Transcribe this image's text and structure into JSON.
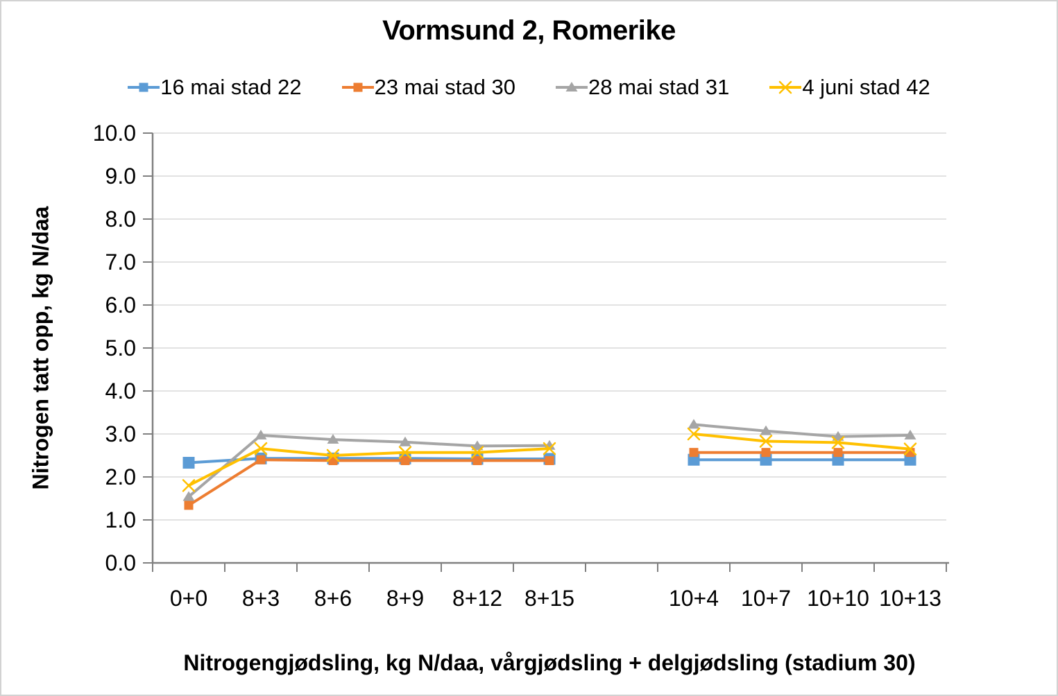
{
  "chart_data": {
    "type": "line",
    "title": "Vormsund 2, Romerike",
    "xlabel": "Nitrogengjødsling, kg N/daa, vårgjødsling + delgjødsling (stadium 30)",
    "ylabel": "Nitrogen tatt opp, kg N/daa",
    "ylim": [
      0,
      10
    ],
    "ytick_step": 1.0,
    "yticks": [
      "0.0",
      "1.0",
      "2.0",
      "3.0",
      "4.0",
      "5.0",
      "6.0",
      "7.0",
      "8.0",
      "9.0",
      "10.0"
    ],
    "grid": "horizontal",
    "legend_position": "top",
    "categories": [
      "0+0",
      "8+3",
      "8+6",
      "8+9",
      "8+12",
      "8+15",
      "",
      "10+4",
      "10+7",
      "10+10",
      "10+13"
    ],
    "series": [
      {
        "name": "16 mai stad 22",
        "color": "#5B9BD5",
        "marker": "square",
        "values": [
          2.33,
          2.43,
          2.43,
          2.43,
          2.42,
          2.42,
          null,
          2.4,
          2.4,
          2.4,
          2.4
        ]
      },
      {
        "name": "23 mai stad 30",
        "color": "#ED7D31",
        "marker": "square",
        "values": [
          1.34,
          2.4,
          2.38,
          2.38,
          2.38,
          2.38,
          null,
          2.57,
          2.57,
          2.57,
          2.57
        ]
      },
      {
        "name": "28 mai stad 31",
        "color": "#A5A5A5",
        "marker": "triangle",
        "values": [
          1.54,
          2.97,
          2.87,
          2.81,
          2.72,
          2.73,
          null,
          3.22,
          3.07,
          2.94,
          2.97
        ]
      },
      {
        "name": "4 juni stad 42",
        "color": "#FFC000",
        "marker": "x",
        "values": [
          1.8,
          2.66,
          2.5,
          2.57,
          2.57,
          2.66,
          null,
          3.0,
          2.83,
          2.8,
          2.65
        ]
      }
    ],
    "axis_color": "#808080",
    "gridline_color": "#D9D9D9",
    "text_color": "#000000",
    "border_color": "#D2D2D2"
  }
}
